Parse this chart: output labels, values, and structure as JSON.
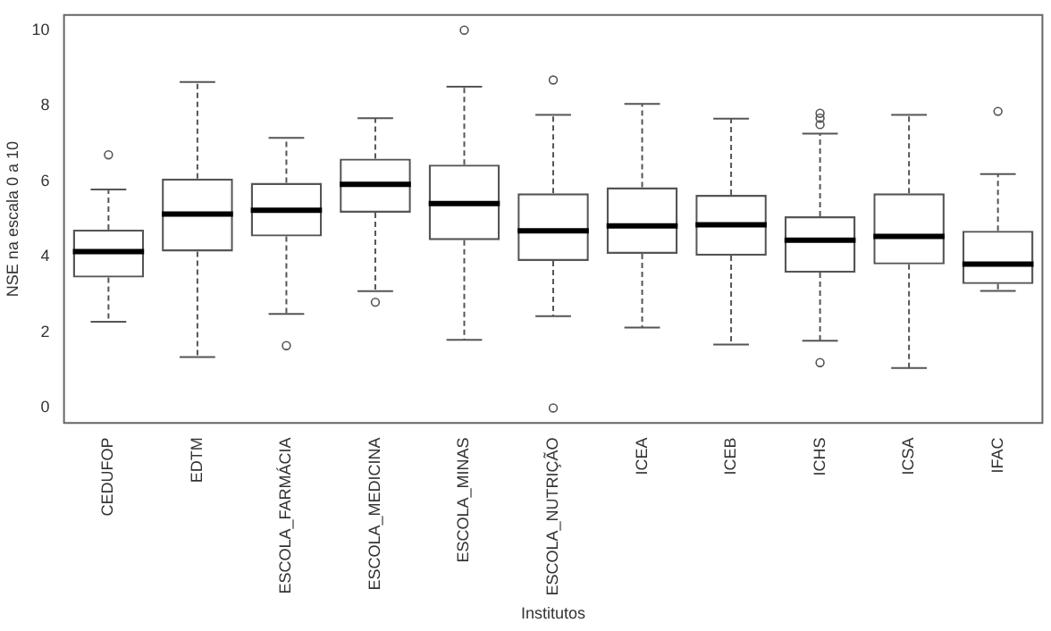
{
  "chart_data": {
    "type": "box",
    "xlabel": "Institutos",
    "ylabel": "NSE na escala 0 a 10",
    "categories": [
      "CEDUFOP",
      "EDTM",
      "ESCOLA_FARMÁCIA",
      "ESCOLA_MEDICINA",
      "ESCOLA_MINAS",
      "ESCOLA_NUTRIÇÃO",
      "ICEA",
      "ICEB",
      "ICHS",
      "ICSA",
      "IFAC"
    ],
    "boxes": [
      {
        "low": 2.28,
        "q1": 3.45,
        "median": 4.14,
        "q3": 4.72,
        "high": 5.78,
        "outliers": [
          6.7
        ]
      },
      {
        "low": 1.35,
        "q1": 4.14,
        "median": 5.13,
        "q3": 6.07,
        "high": 8.63
      },
      {
        "low": 2.49,
        "q1": 4.54,
        "median": 5.23,
        "q3": 5.96,
        "high": 7.15,
        "outliers": [
          1.65
        ]
      },
      {
        "low": 3.09,
        "q1": 5.17,
        "median": 5.92,
        "q3": 6.6,
        "high": 7.67,
        "outliers": [
          2.8
        ]
      },
      {
        "low": 1.8,
        "q1": 4.44,
        "median": 5.41,
        "q3": 6.44,
        "high": 8.5,
        "outliers": [
          10
        ]
      },
      {
        "low": 2.43,
        "q1": 3.89,
        "median": 4.69,
        "q3": 5.68,
        "high": 7.76,
        "outliers": [
          8.68,
          0
        ]
      },
      {
        "low": 2.13,
        "q1": 4.08,
        "median": 4.82,
        "q3": 5.84,
        "high": 8.05
      },
      {
        "low": 1.68,
        "q1": 4.03,
        "median": 4.85,
        "q3": 5.64,
        "high": 7.66
      },
      {
        "low": 1.78,
        "q1": 3.58,
        "median": 4.44,
        "q3": 5.07,
        "high": 7.26,
        "outliers": [
          7.8,
          7.67,
          7.5,
          1.2
        ]
      },
      {
        "low": 1.06,
        "q1": 3.8,
        "median": 4.54,
        "q3": 5.68,
        "high": 7.76
      },
      {
        "low": 3.1,
        "q1": 3.28,
        "median": 3.81,
        "q3": 4.69,
        "high": 6.19,
        "outliers": [
          7.85
        ]
      }
    ],
    "ylim": [
      -0.4,
      10.4
    ],
    "yticks": [
      0,
      2,
      4,
      6,
      8,
      10
    ],
    "grid": false,
    "legend": false,
    "marker": "circle",
    "color": "#555555"
  }
}
